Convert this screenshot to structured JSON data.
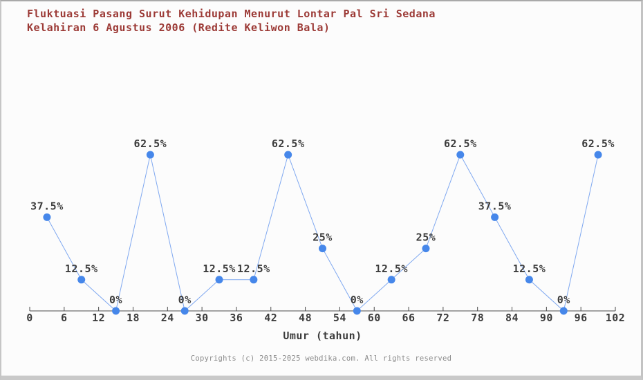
{
  "title": {
    "line1": "Fluktuasi Pasang Surut Kehidupan Menurut Lontar Pal Sri Sedana",
    "line2": "Kelahiran 6 Agustus 2006 (Redite Keliwon Bala)"
  },
  "chart_data": {
    "type": "line",
    "x": [
      3,
      9,
      15,
      21,
      27,
      33,
      39,
      45,
      51,
      57,
      63,
      69,
      75,
      81,
      87,
      93,
      99
    ],
    "values": [
      37.5,
      12.5,
      0,
      62.5,
      0,
      12.5,
      12.5,
      62.5,
      25,
      0,
      12.5,
      25,
      62.5,
      37.5,
      12.5,
      0,
      62.5
    ],
    "point_labels": [
      "37.5%",
      "12.5%",
      "0%",
      "62.5%",
      "0%",
      "12.5%",
      "12.5%",
      "62.5%",
      "25%",
      "0%",
      "12.5%",
      "25%",
      "62.5%",
      "37.5%",
      "12.5%",
      "0%",
      "62.5%"
    ],
    "title": "Fluktuasi Pasang Surut Kehidupan Menurut Lontar Pal Sri Sedana Kelahiran 6 Agustus 2006 (Redite Keliwon Bala)",
    "xlabel": "Umur (tahun)",
    "ylabel": "",
    "x_ticks": [
      0,
      6,
      12,
      18,
      24,
      30,
      36,
      42,
      48,
      54,
      60,
      66,
      72,
      78,
      84,
      90,
      96,
      102
    ],
    "xlim": [
      0,
      102
    ],
    "ylim": [
      0,
      62.5
    ],
    "grid": false,
    "legend": "none",
    "y_axis_shown": false,
    "colors": {
      "point": "#4687ea",
      "line": "#7fa8f0",
      "axis": "#4a4a4a",
      "data_label": "#3c3c3c",
      "title": "#9c3a36",
      "footer": "#8a8a8a",
      "background": "#fcfcfc"
    }
  },
  "footer": {
    "copyright": "Copyrights (c) 2015-2025 webdika.com. All rights reserved"
  }
}
